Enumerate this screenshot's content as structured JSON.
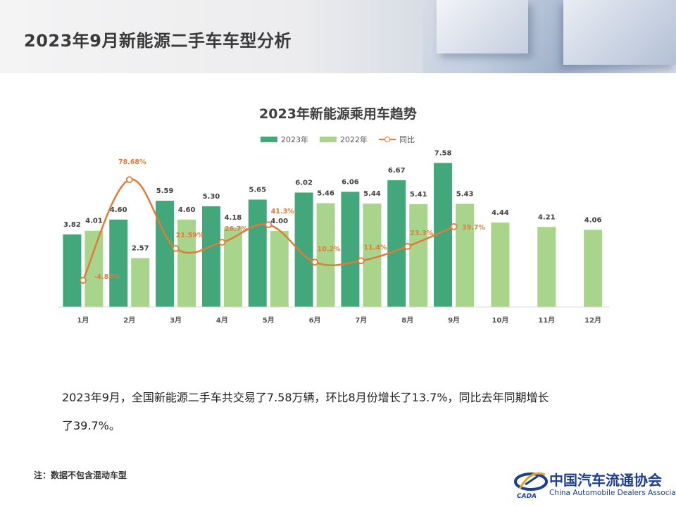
{
  "header": {
    "title": "2023年9月新能源二手车车型分析"
  },
  "chart_data": {
    "type": "bar",
    "title": "2023年新能源乘用车趋势",
    "categories": [
      "1月",
      "2月",
      "3月",
      "4月",
      "5月",
      "6月",
      "7月",
      "8月",
      "9月",
      "10月",
      "11月",
      "12月"
    ],
    "series": [
      {
        "name": "2023年",
        "kind": "bar",
        "color": "#43a77c",
        "values": [
          3.82,
          4.6,
          5.59,
          5.3,
          5.65,
          6.02,
          6.06,
          6.67,
          7.58,
          null,
          null,
          null
        ],
        "labels": [
          "3.82",
          "4.60",
          "5.59",
          "5.30",
          "5.65",
          "6.02",
          "6.06",
          "6.67",
          "7.58",
          "",
          "",
          ""
        ]
      },
      {
        "name": "2022年",
        "kind": "bar",
        "color": "#a9d48b",
        "values": [
          4.01,
          2.57,
          4.6,
          4.18,
          4.0,
          5.46,
          5.44,
          5.41,
          5.43,
          4.44,
          4.21,
          4.06
        ],
        "labels": [
          "4.01",
          "2.57",
          "4.60",
          "4.18",
          "4.00",
          "5.46",
          "5.44",
          "5.41",
          "5.43",
          "4.44",
          "4.21",
          "4.06"
        ]
      },
      {
        "name": "同比",
        "kind": "line",
        "color": "#e07b39",
        "unit": "%",
        "values": [
          -4.83,
          78.68,
          21.59,
          26.7,
          41.3,
          10.2,
          11.4,
          23.3,
          39.7,
          null,
          null,
          null
        ],
        "labels": [
          "-4.83%",
          "78.68%",
          "21.59%",
          "26.7%",
          "41.3%",
          "10.2%",
          "11.4%",
          "23.3%",
          "39.7%",
          "",
          "",
          ""
        ]
      }
    ],
    "ylim": [
      0,
      8
    ],
    "y2lim": [
      -20,
      100
    ],
    "legend_position": "top-center",
    "grid": false,
    "xlabel": "",
    "ylabel": ""
  },
  "summary": {
    "line1": "2023年9月，全国新能源二手车共交易了7.58万辆，环比8月份增长了13.7%，同比去年同期增长",
    "line2": "了39.7%。"
  },
  "note": "注：数据不包含混动车型",
  "logo": {
    "name_cn": "中国汽车流通协会",
    "name_en": "China Automobile Dealers Association",
    "abbr": "CADA"
  }
}
